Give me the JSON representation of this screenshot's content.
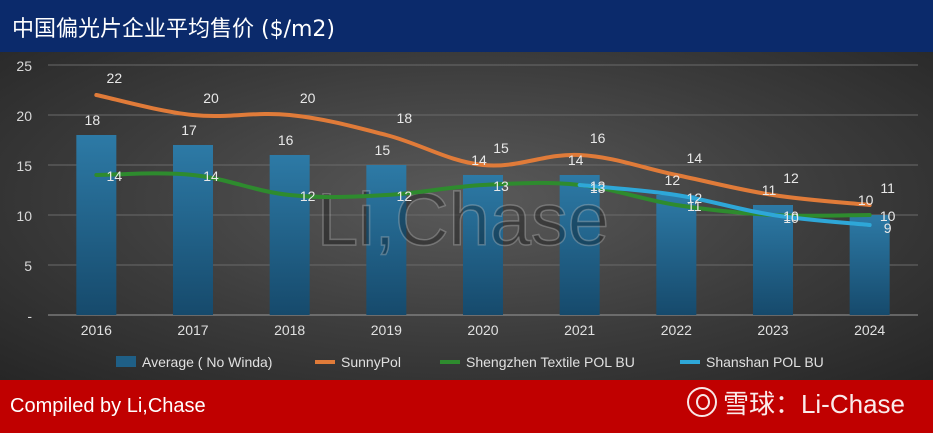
{
  "title": "中国偏光片企业平均售价 ($/m2)",
  "credit": "Compiled by Li,Chase",
  "footer_watermark": "雪球：Li-Chase",
  "watermark": "Li,Chase",
  "colors": {
    "title_bar": "#0b2a6b",
    "footer_bar": "#c00000",
    "average": "#1f5f86",
    "sunnypol": "#e07b39",
    "shengzhen": "#2e8b2e",
    "shanshan": "#2ea7d8"
  },
  "chart_data": {
    "type": "bar",
    "categories": [
      "2016",
      "2017",
      "2018",
      "2019",
      "2020",
      "2021",
      "2022",
      "2023",
      "2024"
    ],
    "ylim": [
      0,
      25
    ],
    "y_ticks": [
      "-",
      "5",
      "10",
      "15",
      "20",
      "25"
    ],
    "grid": true,
    "legend_position": "bottom",
    "series": [
      {
        "name": "Average ( No Winda)",
        "kind": "bar",
        "values": [
          18,
          17,
          16,
          15,
          14,
          14,
          12,
          11,
          10
        ]
      },
      {
        "name": "SunnyPol",
        "kind": "line",
        "values": [
          22,
          20,
          20,
          18,
          15,
          16,
          14,
          12,
          11
        ]
      },
      {
        "name": "Shengzhen Textile POL BU",
        "kind": "line",
        "values": [
          14,
          14,
          12,
          12,
          13,
          13,
          11,
          10,
          10
        ]
      },
      {
        "name": "Shanshan POL BU",
        "kind": "line",
        "values": [
          null,
          null,
          null,
          null,
          null,
          13,
          12,
          10,
          9
        ]
      }
    ]
  }
}
